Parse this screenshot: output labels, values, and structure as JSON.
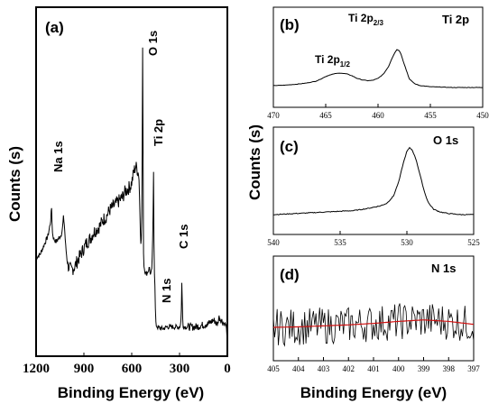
{
  "chart_data": [
    {
      "panel": "(a)",
      "type": "line",
      "xlabel": "Binding Energy (eV)",
      "ylabel": "Counts (s)",
      "xlim": [
        1200,
        0
      ],
      "xticks": [
        1200,
        900,
        600,
        300,
        0
      ],
      "y_ticks_shown": false,
      "annotations": [
        "O 1s",
        "Ti 2p",
        "Na 1s",
        "C 1s",
        "N 1s"
      ],
      "series": [
        {
          "x": [
            1200,
            1175,
            1150,
            1125,
            1110,
            1103,
            1098,
            1090,
            1075,
            1060,
            1045,
            1035,
            1028,
            1022,
            1015,
            1005,
            995,
            980,
            960,
            940,
            920,
            900,
            880,
            860,
            840,
            820,
            800,
            780,
            760,
            740,
            720,
            700,
            680,
            660,
            640,
            620,
            605,
            595,
            588,
            575,
            565,
            555,
            550,
            546,
            542,
            538,
            534,
            531,
            529,
            527,
            525,
            522,
            518,
            512,
            505,
            495,
            488,
            482,
            475,
            470,
            466,
            463,
            460,
            458,
            456,
            453,
            450,
            440,
            420,
            400,
            380,
            360,
            340,
            320,
            300,
            292,
            288,
            285,
            282,
            278,
            270,
            240,
            200,
            160,
            120,
            90,
            80,
            70,
            60,
            55,
            50,
            35,
            20,
            10,
            3,
            0
          ],
          "y": [
            2.9,
            3.0,
            3.3,
            3.6,
            4.0,
            4.5,
            3.7,
            3.5,
            3.4,
            3.5,
            3.6,
            3.8,
            4.2,
            3.9,
            3.3,
            2.8,
            2.6,
            2.5,
            2.6,
            2.8,
            3.0,
            3.2,
            3.4,
            3.5,
            3.7,
            3.8,
            3.9,
            4.1,
            4.2,
            4.4,
            4.5,
            4.6,
            4.7,
            4.8,
            5.0,
            5.1,
            5.2,
            5.4,
            5.6,
            5.8,
            5.7,
            5.5,
            4.6,
            3.8,
            3.3,
            3.6,
            6.5,
            10.0,
            7.0,
            3.5,
            2.8,
            2.6,
            2.5,
            2.4,
            2.4,
            2.5,
            2.6,
            2.3,
            2.5,
            3.0,
            4.2,
            5.8,
            3.4,
            2.6,
            2.2,
            1.8,
            0.8,
            0.7,
            0.65,
            0.65,
            0.7,
            0.7,
            0.7,
            0.7,
            0.7,
            0.8,
            1.4,
            2.3,
            1.2,
            0.75,
            0.7,
            0.7,
            0.7,
            0.75,
            0.8,
            0.9,
            0.9,
            0.8,
            0.8,
            1.0,
            1.0,
            0.9,
            0.8,
            0.8,
            0.5,
            0.2
          ]
        }
      ]
    },
    {
      "panel": "(b)",
      "type": "line",
      "xlim": [
        470,
        450
      ],
      "xticks": [
        470,
        465,
        460,
        455,
        450
      ],
      "y_ticks_shown": false,
      "legend_text": "Ti 2p",
      "annotations": [
        "Ti 2p1/2",
        "Ti 2p2/3"
      ],
      "series": [
        {
          "x": [
            470,
            469,
            468,
            467,
            466,
            465.5,
            465,
            464.5,
            464,
            463.6,
            463,
            462.5,
            462,
            461.5,
            461,
            460.5,
            460,
            459.5,
            459,
            458.7,
            458.4,
            458.2,
            458.0,
            457.8,
            457.5,
            457.2,
            457,
            456.5,
            456,
            455,
            454,
            453,
            452,
            451,
            450
          ],
          "y": [
            0.05,
            0.06,
            0.08,
            0.11,
            0.16,
            0.22,
            0.29,
            0.34,
            0.37,
            0.38,
            0.36,
            0.31,
            0.24,
            0.2,
            0.18,
            0.19,
            0.24,
            0.35,
            0.55,
            0.75,
            0.92,
            1.0,
            0.98,
            0.88,
            0.62,
            0.38,
            0.22,
            0.1,
            0.05,
            0.02,
            0.01,
            0.0,
            0.0,
            0.0,
            0.0
          ]
        }
      ]
    },
    {
      "panel": "(c)",
      "type": "line",
      "xlim": [
        540,
        525
      ],
      "xticks": [
        540,
        535,
        530,
        525
      ],
      "y_ticks_shown": false,
      "legend_text": "O 1s",
      "series": [
        {
          "x": [
            540,
            539,
            538,
            537,
            536,
            535,
            534,
            533,
            532.5,
            532,
            531.5,
            531,
            530.6,
            530.3,
            530.0,
            529.8,
            529.6,
            529.3,
            529.0,
            528.7,
            528.4,
            528,
            527.5,
            527,
            526.5,
            526,
            525.5,
            525
          ],
          "y": [
            0.0,
            0.01,
            0.02,
            0.03,
            0.04,
            0.05,
            0.06,
            0.09,
            0.11,
            0.13,
            0.17,
            0.28,
            0.5,
            0.75,
            0.95,
            1.0,
            0.97,
            0.82,
            0.58,
            0.35,
            0.18,
            0.08,
            0.04,
            0.02,
            0.01,
            0.0,
            0.0,
            0.0
          ]
        }
      ]
    },
    {
      "panel": "(d)",
      "type": "line",
      "xlabel": "Binding Energy (eV)",
      "xlim": [
        405,
        397
      ],
      "xticks": [
        405,
        404,
        403,
        402,
        401,
        400,
        399,
        398,
        397
      ],
      "y_ticks_shown": false,
      "legend_text": "N 1s",
      "series": [
        {
          "x": [
            405,
            404,
            403,
            402,
            401,
            400,
            399,
            398,
            397
          ],
          "y": [
            0.4,
            0.41,
            0.43,
            0.45,
            0.48,
            0.52,
            0.55,
            0.52,
            0.46
          ]
        }
      ]
    }
  ]
}
